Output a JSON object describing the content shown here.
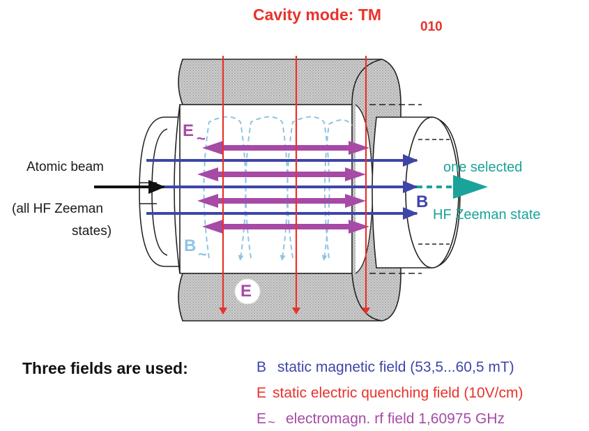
{
  "title": {
    "main": "Cavity mode: TM",
    "subscript": "010"
  },
  "beam": {
    "atomic_beam": "Atomic beam",
    "hf_states_line1": "(all HF Zeeman",
    "hf_states_line2": "states)"
  },
  "output": {
    "line1": "one selected",
    "line2": "HF Zeeman state"
  },
  "field_marks": {
    "e_rf": "E",
    "b_rf": "B",
    "e_static": "E",
    "b_static": "B",
    "tilde": "~"
  },
  "legend": {
    "heading": "Three fields are used:",
    "b_symbol": "B",
    "b_text": "static magnetic field (53,5...60,5 mT)",
    "e_symbol": "E",
    "e_text": "static electric quenching field (10V/cm)",
    "erf_symbol": "E",
    "erf_text": "electromagn. rf field 1,60975 GHz"
  },
  "colors": {
    "red": "#e8322a",
    "blue": "#3e45a8",
    "magenta": "#a64aa6",
    "light_blue": "#8fc3e4",
    "teal": "#1aa39a",
    "gray": "#c8c8c8"
  }
}
